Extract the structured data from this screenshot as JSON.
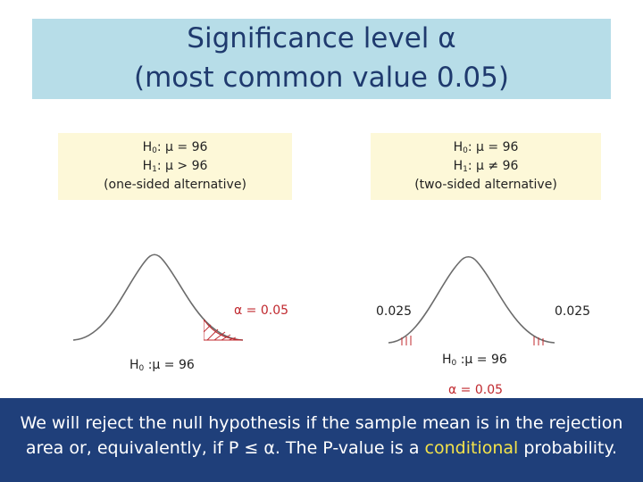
{
  "title": {
    "line1": "Significance level α",
    "line2": "(most common value 0.05)"
  },
  "left_panel": {
    "h0_symbol": "H",
    "h0_sub": "0",
    "h0_text": ": μ = 96",
    "h1_symbol": "H",
    "h1_sub": "1",
    "h1_text": ": μ > 96",
    "note": "(one-sided alternative)",
    "alpha_label": "α = 0.05",
    "axis_sym": "H",
    "axis_sub": "0",
    "axis_text": " :μ = 96"
  },
  "right_panel": {
    "h0_symbol": "H",
    "h0_sub": "0",
    "h0_text": ": μ = 96",
    "h1_symbol": "H",
    "h1_sub": "1",
    "h1_text": ": μ ≠ 96",
    "note": "(two-sided alternative)",
    "left_tail": "0.025",
    "right_tail": "0.025",
    "axis_sym": "H",
    "axis_sub": "0",
    "axis_text": " :μ = 96",
    "alpha_label": "α = 0.05"
  },
  "footer": {
    "line1": "We will reject the null hypothesis if the sample mean is in the rejection",
    "line2_pre": "area or, equivalently, if P ≤ α. The P-value is a ",
    "line2_highlight": "conditional",
    "line2_post": " probability."
  },
  "colors": {
    "title_bg": "#b7dde8",
    "title_text": "#1f3a6e",
    "hyp_bg": "#fdf8d8",
    "alpha_red": "#c0282e",
    "footer_bg": "#1f3f7a",
    "highlight": "#f3e24a"
  }
}
